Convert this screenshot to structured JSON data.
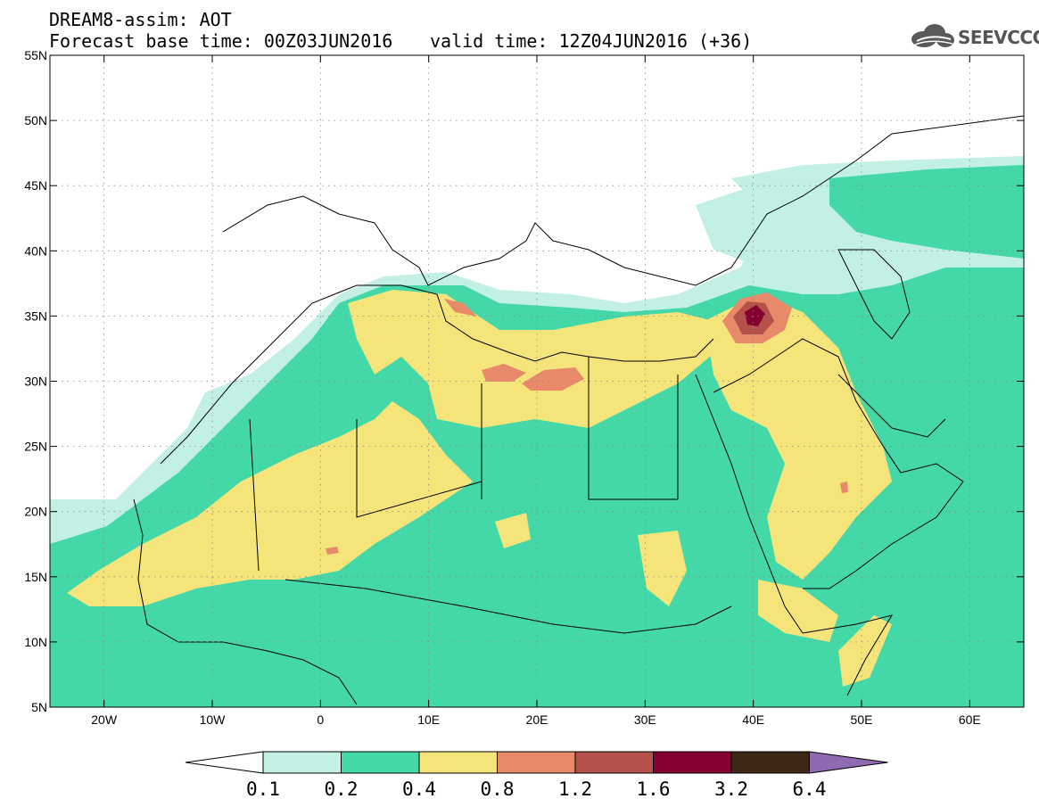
{
  "title": {
    "line1": "DREAM8-assim: AOT",
    "base_time": "Forecast base time: 00Z03JUN2016",
    "valid_time": "valid time: 12Z04JUN2016 (+36)"
  },
  "logo": {
    "text": "SEEVCCC",
    "icon": "cloud-logo-icon"
  },
  "axes": {
    "lon_ticks": [
      "20W",
      "10W",
      "0",
      "10E",
      "20E",
      "30E",
      "40E",
      "50E",
      "60E"
    ],
    "lon_values": [
      -20,
      -10,
      0,
      10,
      20,
      30,
      40,
      50,
      60
    ],
    "lat_ticks": [
      "55N",
      "50N",
      "45N",
      "40N",
      "35N",
      "30N",
      "25N",
      "20N",
      "15N",
      "10N",
      "5N"
    ],
    "lat_values": [
      55,
      50,
      45,
      40,
      35,
      30,
      25,
      20,
      15,
      10,
      5
    ],
    "lon_range": [
      -25,
      65
    ],
    "lat_range": [
      5,
      55
    ]
  },
  "legend": {
    "labels": [
      "0.1",
      "0.2",
      "0.4",
      "0.8",
      "1.2",
      "1.6",
      "3.2",
      "6.4"
    ],
    "colors": [
      "#ffffff",
      "#c2f0e4",
      "#44d7a8",
      "#f5e47a",
      "#e8896a",
      "#b5514a",
      "#850030",
      "#3d2816",
      "#8e6bb0"
    ]
  }
}
